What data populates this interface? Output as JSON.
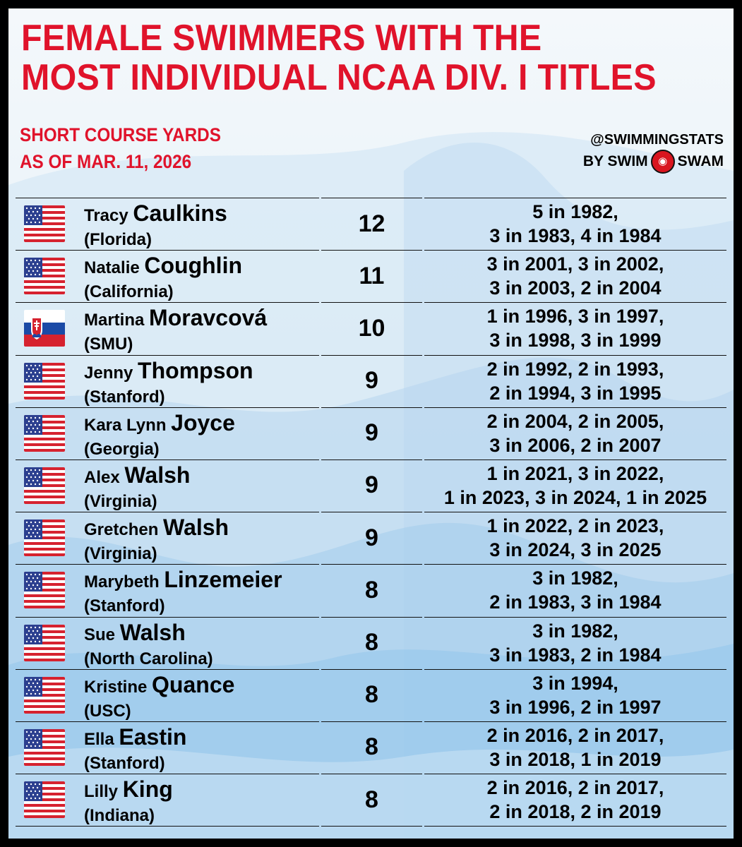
{
  "title": {
    "line1": "FEMALE SWIMMERS WITH THE",
    "line2": "MOST INDIVIDUAL NCAA DIV. I TITLES"
  },
  "subtitle": {
    "line1": "SHORT COURSE YARDS",
    "line2": "AS OF MAR. 11, 2026"
  },
  "brand": {
    "handle": "@SWIMMINGSTATS",
    "by": "BY SWIM",
    "swam": "SWAM"
  },
  "colors": {
    "accent": "#e0132b",
    "text": "#000000",
    "frame": "#000000"
  },
  "rows": [
    {
      "flag": "usa-flag-icon",
      "first": "Tracy",
      "last": "Caulkins",
      "school": "(Florida)",
      "titles": "12",
      "years1": "5 in 1982,",
      "years2": "3 in 1983, 4 in 1984"
    },
    {
      "flag": "usa-flag-icon",
      "first": "Natalie",
      "last": "Coughlin",
      "school": "(California)",
      "titles": "11",
      "years1": "3 in 2001, 3 in 2002,",
      "years2": "3 in 2003, 2 in 2004"
    },
    {
      "flag": "slovakia-flag-icon",
      "first": "Martina",
      "last": "Moravcová",
      "school": "(SMU)",
      "titles": "10",
      "years1": "1 in 1996, 3 in 1997,",
      "years2": "3 in 1998, 3 in 1999"
    },
    {
      "flag": "usa-flag-icon",
      "first": "Jenny",
      "last": "Thompson",
      "school": "(Stanford)",
      "titles": "9",
      "years1": "2 in 1992, 2 in 1993,",
      "years2": "2 in 1994, 3 in 1995"
    },
    {
      "flag": "usa-flag-icon",
      "first": "Kara Lynn",
      "last": "Joyce",
      "school": "(Georgia)",
      "titles": "9",
      "years1": "2 in 2004, 2 in 2005,",
      "years2": "3 in 2006, 2 in 2007"
    },
    {
      "flag": "usa-flag-icon",
      "first": "Alex",
      "last": "Walsh",
      "school": "(Virginia)",
      "titles": "9",
      "years1": "1 in 2021, 3 in 2022,",
      "years2": "1 in 2023, 3 in 2024, 1 in 2025"
    },
    {
      "flag": "usa-flag-icon",
      "first": "Gretchen",
      "last": "Walsh",
      "school": "(Virginia)",
      "titles": "9",
      "years1": "1 in 2022, 2 in 2023,",
      "years2": "3 in 2024, 3 in 2025"
    },
    {
      "flag": "usa-flag-icon",
      "first": "Marybeth",
      "last": "Linzemeier",
      "school": "(Stanford)",
      "titles": "8",
      "years1": "3 in 1982,",
      "years2": "2 in 1983, 3 in 1984"
    },
    {
      "flag": "usa-flag-icon",
      "first": "Sue",
      "last": "Walsh",
      "school": "(North Carolina)",
      "titles": "8",
      "years1": "3 in 1982,",
      "years2": "3 in 1983, 2 in 1984"
    },
    {
      "flag": "usa-flag-icon",
      "first": "Kristine",
      "last": "Quance",
      "school": "(USC)",
      "titles": "8",
      "years1": "3 in 1994,",
      "years2": "3 in 1996, 2 in 1997"
    },
    {
      "flag": "usa-flag-icon",
      "first": "Ella",
      "last": "Eastin",
      "school": "(Stanford)",
      "titles": "8",
      "years1": "2 in 2016, 2 in 2017,",
      "years2": "3 in 2018, 1 in 2019"
    },
    {
      "flag": "usa-flag-icon",
      "first": "Lilly",
      "last": "King",
      "school": "(Indiana)",
      "titles": "8",
      "years1": "2 in 2016, 2 in 2017,",
      "years2": "2 in 2018, 2 in 2019"
    }
  ]
}
